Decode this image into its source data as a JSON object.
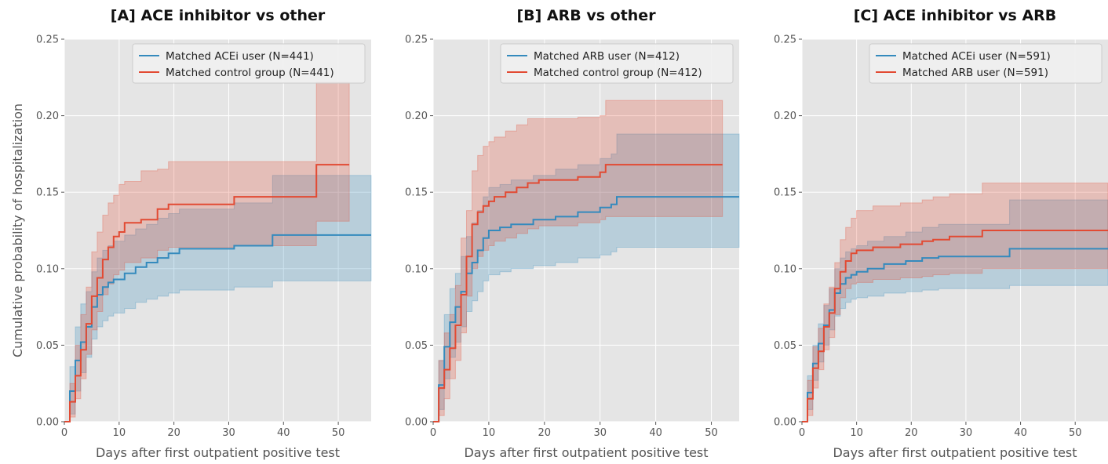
{
  "figure": {
    "ylabel": "Cumulative probability of hospitalization"
  },
  "colors": {
    "blue": "#348abd",
    "red": "#e24a33",
    "panel_bg": "#e5e5e5",
    "grid": "#ffffff",
    "legend_bg": "#f0f0f0"
  },
  "chart_data": [
    {
      "type": "line",
      "title": "[A] ACE inhibitor vs other",
      "xlabel": "Days after first outpatient positive test",
      "ylabel": "Cumulative probability of hospitalization",
      "xlim": [
        0,
        56
      ],
      "ylim": [
        0,
        0.25
      ],
      "xticks": [
        "0",
        "10",
        "20",
        "30",
        "40",
        "50"
      ],
      "yticks": [
        "0.00",
        "0.05",
        "0.10",
        "0.15",
        "0.20",
        "0.25"
      ],
      "grid": true,
      "legend_position": "top-right",
      "series": [
        {
          "name": "Matched ACEi user (N=441)",
          "color": "#348abd",
          "step": "post",
          "x": [
            0,
            1,
            2,
            3,
            4,
            5,
            6,
            7,
            8,
            9,
            11,
            13,
            15,
            17,
            19,
            21,
            31,
            38,
            56
          ],
          "y": [
            0,
            0.02,
            0.04,
            0.052,
            0.062,
            0.075,
            0.083,
            0.088,
            0.091,
            0.093,
            0.097,
            0.101,
            0.104,
            0.107,
            0.11,
            0.113,
            0.115,
            0.122,
            0.122
          ],
          "lower": [
            0,
            0.005,
            0.02,
            0.032,
            0.042,
            0.054,
            0.062,
            0.066,
            0.069,
            0.071,
            0.074,
            0.078,
            0.08,
            0.082,
            0.084,
            0.086,
            0.088,
            0.092,
            0.092
          ],
          "upper": [
            0,
            0.036,
            0.062,
            0.077,
            0.085,
            0.098,
            0.107,
            0.112,
            0.115,
            0.118,
            0.122,
            0.126,
            0.129,
            0.133,
            0.136,
            0.139,
            0.143,
            0.161,
            0.161
          ]
        },
        {
          "name": "Matched control group (N=441)",
          "color": "#e24a33",
          "step": "post",
          "x": [
            0,
            1,
            2,
            3,
            4,
            5,
            6,
            7,
            8,
            9,
            10,
            11,
            14,
            17,
            19,
            31,
            46,
            52
          ],
          "y": [
            0,
            0.013,
            0.03,
            0.047,
            0.064,
            0.082,
            0.094,
            0.106,
            0.114,
            0.121,
            0.124,
            0.13,
            0.132,
            0.139,
            0.142,
            0.147,
            0.168,
            0.168
          ],
          "lower": [
            0,
            0.003,
            0.015,
            0.028,
            0.044,
            0.06,
            0.072,
            0.083,
            0.09,
            0.096,
            0.099,
            0.104,
            0.107,
            0.112,
            0.114,
            0.115,
            0.131,
            0.131
          ],
          "upper": [
            0,
            0.025,
            0.05,
            0.07,
            0.088,
            0.111,
            0.124,
            0.135,
            0.143,
            0.148,
            0.155,
            0.157,
            0.164,
            0.165,
            0.17,
            0.17,
            0.222,
            0.222
          ]
        }
      ]
    },
    {
      "type": "line",
      "title": "[B] ARB vs other",
      "xlabel": "Days after first outpatient positive test",
      "ylabel": "",
      "xlim": [
        0,
        55
      ],
      "ylim": [
        0,
        0.25
      ],
      "xticks": [
        "0",
        "10",
        "20",
        "30",
        "40",
        "50"
      ],
      "yticks": [
        "0.00",
        "0.05",
        "0.10",
        "0.15",
        "0.20",
        "0.25"
      ],
      "grid": true,
      "legend_position": "top-right",
      "series": [
        {
          "name": "Matched ARB user (N=412)",
          "color": "#348abd",
          "step": "post",
          "x": [
            0,
            1,
            2,
            3,
            4,
            5,
            6,
            7,
            8,
            9,
            10,
            12,
            14,
            18,
            22,
            26,
            30,
            32,
            33,
            55
          ],
          "y": [
            0,
            0.024,
            0.049,
            0.065,
            0.075,
            0.085,
            0.097,
            0.104,
            0.112,
            0.12,
            0.125,
            0.127,
            0.129,
            0.132,
            0.134,
            0.137,
            0.14,
            0.142,
            0.147,
            0.147
          ],
          "lower": [
            0,
            0.008,
            0.028,
            0.042,
            0.052,
            0.062,
            0.072,
            0.079,
            0.085,
            0.092,
            0.096,
            0.098,
            0.1,
            0.102,
            0.104,
            0.107,
            0.109,
            0.111,
            0.114,
            0.114
          ],
          "upper": [
            0,
            0.04,
            0.07,
            0.087,
            0.097,
            0.108,
            0.121,
            0.13,
            0.138,
            0.147,
            0.153,
            0.155,
            0.158,
            0.161,
            0.165,
            0.168,
            0.172,
            0.175,
            0.188,
            0.188
          ]
        },
        {
          "name": "Matched control group (N=412)",
          "color": "#e24a33",
          "step": "post",
          "x": [
            0,
            1,
            2,
            3,
            4,
            5,
            6,
            7,
            8,
            9,
            10,
            11,
            13,
            15,
            17,
            19,
            26,
            30,
            31,
            52
          ],
          "y": [
            0,
            0.022,
            0.034,
            0.048,
            0.063,
            0.083,
            0.108,
            0.129,
            0.137,
            0.141,
            0.144,
            0.147,
            0.15,
            0.153,
            0.156,
            0.158,
            0.16,
            0.163,
            0.168,
            0.168
          ],
          "lower": [
            0,
            0.004,
            0.015,
            0.028,
            0.04,
            0.058,
            0.082,
            0.1,
            0.108,
            0.112,
            0.115,
            0.118,
            0.12,
            0.123,
            0.126,
            0.128,
            0.13,
            0.132,
            0.134,
            0.134
          ],
          "upper": [
            0,
            0.04,
            0.058,
            0.07,
            0.089,
            0.12,
            0.138,
            0.164,
            0.174,
            0.18,
            0.183,
            0.186,
            0.19,
            0.194,
            0.198,
            0.198,
            0.199,
            0.2,
            0.21,
            0.21
          ]
        }
      ]
    },
    {
      "type": "line",
      "title": "[C] ACE inhibitor vs ARB",
      "xlabel": "Days after first outpatient positive test",
      "ylabel": "",
      "xlim": [
        0,
        56
      ],
      "ylim": [
        0,
        0.25
      ],
      "xticks": [
        "0",
        "10",
        "20",
        "30",
        "40",
        "50"
      ],
      "yticks": [
        "0.00",
        "0.05",
        "0.10",
        "0.15",
        "0.20",
        "0.25"
      ],
      "grid": true,
      "legend_position": "top-right",
      "series": [
        {
          "name": "Matched ACEi user (N=591)",
          "color": "#348abd",
          "step": "post",
          "x": [
            0,
            1,
            2,
            3,
            4,
            5,
            6,
            7,
            8,
            9,
            10,
            12,
            15,
            19,
            22,
            25,
            38,
            56
          ],
          "y": [
            0,
            0.019,
            0.038,
            0.051,
            0.063,
            0.073,
            0.084,
            0.09,
            0.094,
            0.096,
            0.098,
            0.1,
            0.103,
            0.105,
            0.107,
            0.108,
            0.113,
            0.113
          ],
          "lower": [
            0,
            0.008,
            0.027,
            0.039,
            0.05,
            0.06,
            0.069,
            0.074,
            0.078,
            0.08,
            0.081,
            0.082,
            0.084,
            0.085,
            0.086,
            0.087,
            0.089,
            0.089
          ],
          "upper": [
            0,
            0.03,
            0.05,
            0.064,
            0.076,
            0.087,
            0.1,
            0.107,
            0.111,
            0.113,
            0.115,
            0.118,
            0.121,
            0.124,
            0.127,
            0.129,
            0.145,
            0.145
          ]
        },
        {
          "name": "Matched ARB user (N=591)",
          "color": "#e24a33",
          "step": "post",
          "x": [
            0,
            1,
            2,
            3,
            4,
            5,
            6,
            7,
            8,
            9,
            10,
            13,
            18,
            22,
            24,
            27,
            33,
            56
          ],
          "y": [
            0,
            0.015,
            0.035,
            0.046,
            0.062,
            0.071,
            0.087,
            0.098,
            0.105,
            0.11,
            0.112,
            0.114,
            0.116,
            0.118,
            0.119,
            0.121,
            0.125,
            0.125
          ],
          "lower": [
            0,
            0.004,
            0.022,
            0.034,
            0.047,
            0.055,
            0.07,
            0.081,
            0.087,
            0.09,
            0.091,
            0.093,
            0.094,
            0.095,
            0.096,
            0.097,
            0.1,
            0.1
          ],
          "upper": [
            0,
            0.027,
            0.049,
            0.061,
            0.077,
            0.088,
            0.104,
            0.119,
            0.127,
            0.133,
            0.138,
            0.141,
            0.143,
            0.145,
            0.147,
            0.149,
            0.156,
            0.156
          ]
        }
      ]
    }
  ]
}
